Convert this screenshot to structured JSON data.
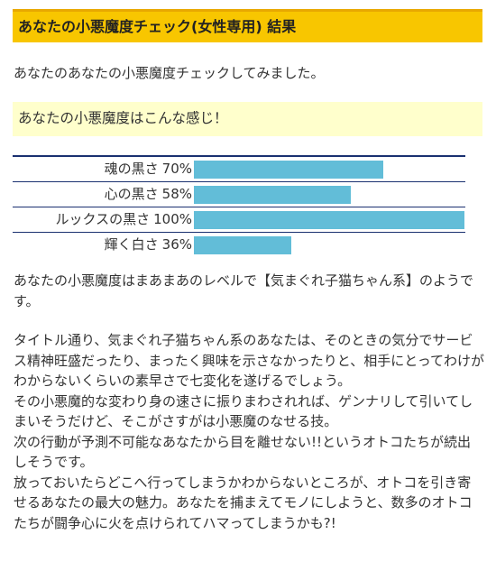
{
  "header": {
    "title": "あなたの小悪魔度チェック(女性専用) 結果"
  },
  "intro": "あなたのあなたの小悪魔度チェックしてみました。",
  "highlight": "あなたの小悪魔度はこんな感じ！",
  "chart_data": {
    "type": "bar",
    "orientation": "horizontal",
    "categories": [
      "魂の黒さ",
      "心の黒さ",
      "ルックスの黒さ",
      "輝く白さ"
    ],
    "values": [
      70,
      58,
      100,
      36
    ],
    "value_labels": [
      "70%",
      "58%",
      "100%",
      "36%"
    ],
    "xlim": [
      0,
      100
    ],
    "color": "#62bdd8"
  },
  "summary": "あなたの小悪魔度はまあまあのレベルで【気まぐれ子猫ちゃん系】のようです。",
  "description": [
    "タイトル通り、気まぐれ子猫ちゃん系のあなたは、そのときの気分でサービス精神旺盛だったり、まったく興味を示さなかったりと、相手にとってわけがわからないくらいの素早さで七変化を遂げるでしょう。",
    "その小悪魔的な変わり身の速さに振りまわされれば、ゲンナリして引いてしまいそうだけど、そこがさすがは小悪魔のなせる技。",
    "次の行動が予測不可能なあなたから目を離せない!!というオトコたちが続出しそうです。",
    "放っておいたらどこへ行ってしまうかわからないところが、オトコを引き寄せるあなたの最大の魅力。あなたを捕まえてモノにしようと、数多のオトコたちが闘争心に火を点けられてハマってしまうかも?!"
  ]
}
